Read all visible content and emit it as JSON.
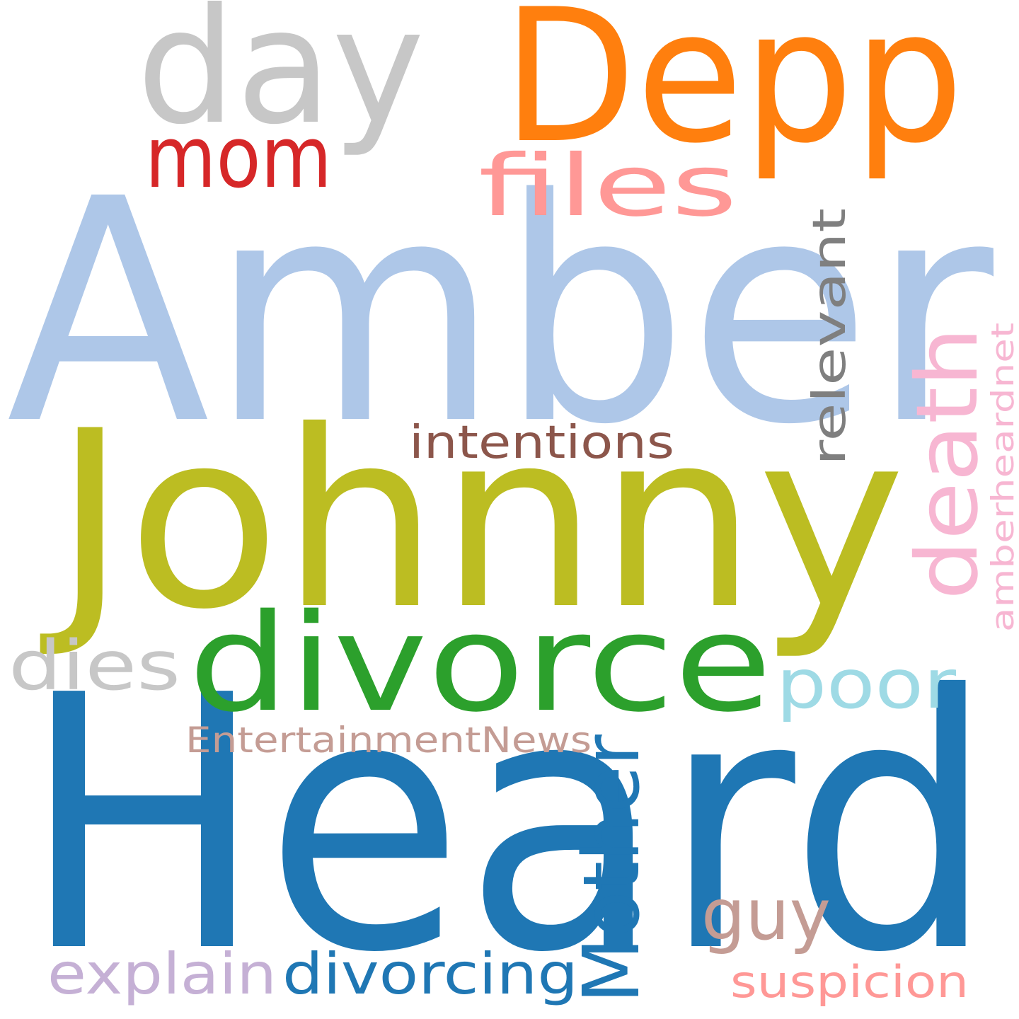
{
  "words": [
    {
      "text": "Amber",
      "color": "#aec7e8"
    },
    {
      "text": "Heard",
      "color": "#1f77b4"
    },
    {
      "text": "Johnny",
      "color": "#bcbd22"
    },
    {
      "text": "Depp",
      "color": "#ff7f0e"
    },
    {
      "text": "day",
      "color": "#c7c7c7"
    },
    {
      "text": "divorce",
      "color": "#2ca02c"
    },
    {
      "text": "mom",
      "color": "#d62728"
    },
    {
      "text": "files",
      "color": "#ff9896"
    },
    {
      "text": "death",
      "color": "#f7b6d2"
    },
    {
      "text": "relevant",
      "color": "#7f7f7f"
    },
    {
      "text": "intentions",
      "color": "#8c564b"
    },
    {
      "text": "dies",
      "color": "#c7c7c7"
    },
    {
      "text": "poor",
      "color": "#9edae5"
    },
    {
      "text": "amberheardnet",
      "color": "#f7b6d2"
    },
    {
      "text": "EntertainmentNews",
      "color": "#c49c94"
    },
    {
      "text": "Mother",
      "color": "#1f77b4"
    },
    {
      "text": "guy",
      "color": "#c49c94"
    },
    {
      "text": "explain",
      "color": "#c5b0d5"
    },
    {
      "text": "divorcing",
      "color": "#1f77b4"
    },
    {
      "text": "suspicion",
      "color": "#ff9896"
    }
  ]
}
